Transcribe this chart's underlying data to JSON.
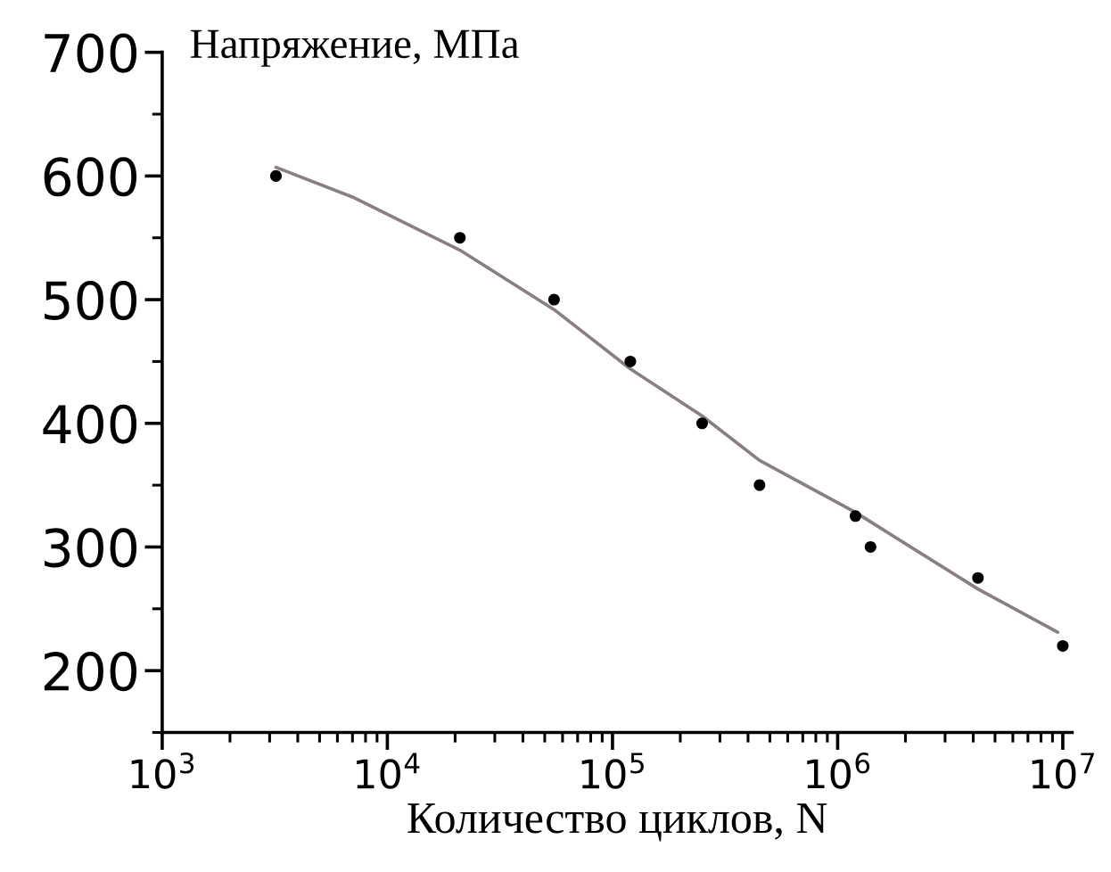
{
  "chart_data": {
    "type": "scatter",
    "xlabel": "Количество циклов, N",
    "ylabel": "Напряжение, МПа",
    "log": "x",
    "xlim": [
      1000,
      11000000
    ],
    "ylim": [
      150,
      700
    ],
    "xticks": [
      {
        "value": 1000,
        "label": "10$^{3}$"
      },
      {
        "value": 10000,
        "label": "10$^{4}$"
      },
      {
        "value": 100000,
        "label": "10$^{5}$"
      },
      {
        "value": 1000000,
        "label": "10$^{6}$"
      },
      {
        "value": 10000000,
        "label": "10$^{7}$"
      }
    ],
    "yticks": [
      200,
      300,
      400,
      500,
      600,
      700
    ],
    "grid": false,
    "legend": false,
    "series": [
      {
        "color": "#000000",
        "marker": "circle",
        "x": [
          3200,
          21000,
          55000,
          120000,
          250000,
          450000,
          1200000,
          1400000,
          4200000,
          10000000
        ],
        "values": [
          600,
          550,
          500,
          450,
          400,
          350,
          325,
          300,
          275,
          220
        ]
      },
      {
        "type": "line",
        "color": "#8a7f7f",
        "line_style": "solid",
        "x": [
          3200,
          7000,
          21000,
          55000,
          120000,
          250000,
          450000,
          1200000,
          4200000,
          9500000
        ],
        "values": [
          607,
          583,
          540,
          492,
          444,
          406,
          370,
          328,
          266,
          231
        ]
      }
    ]
  }
}
